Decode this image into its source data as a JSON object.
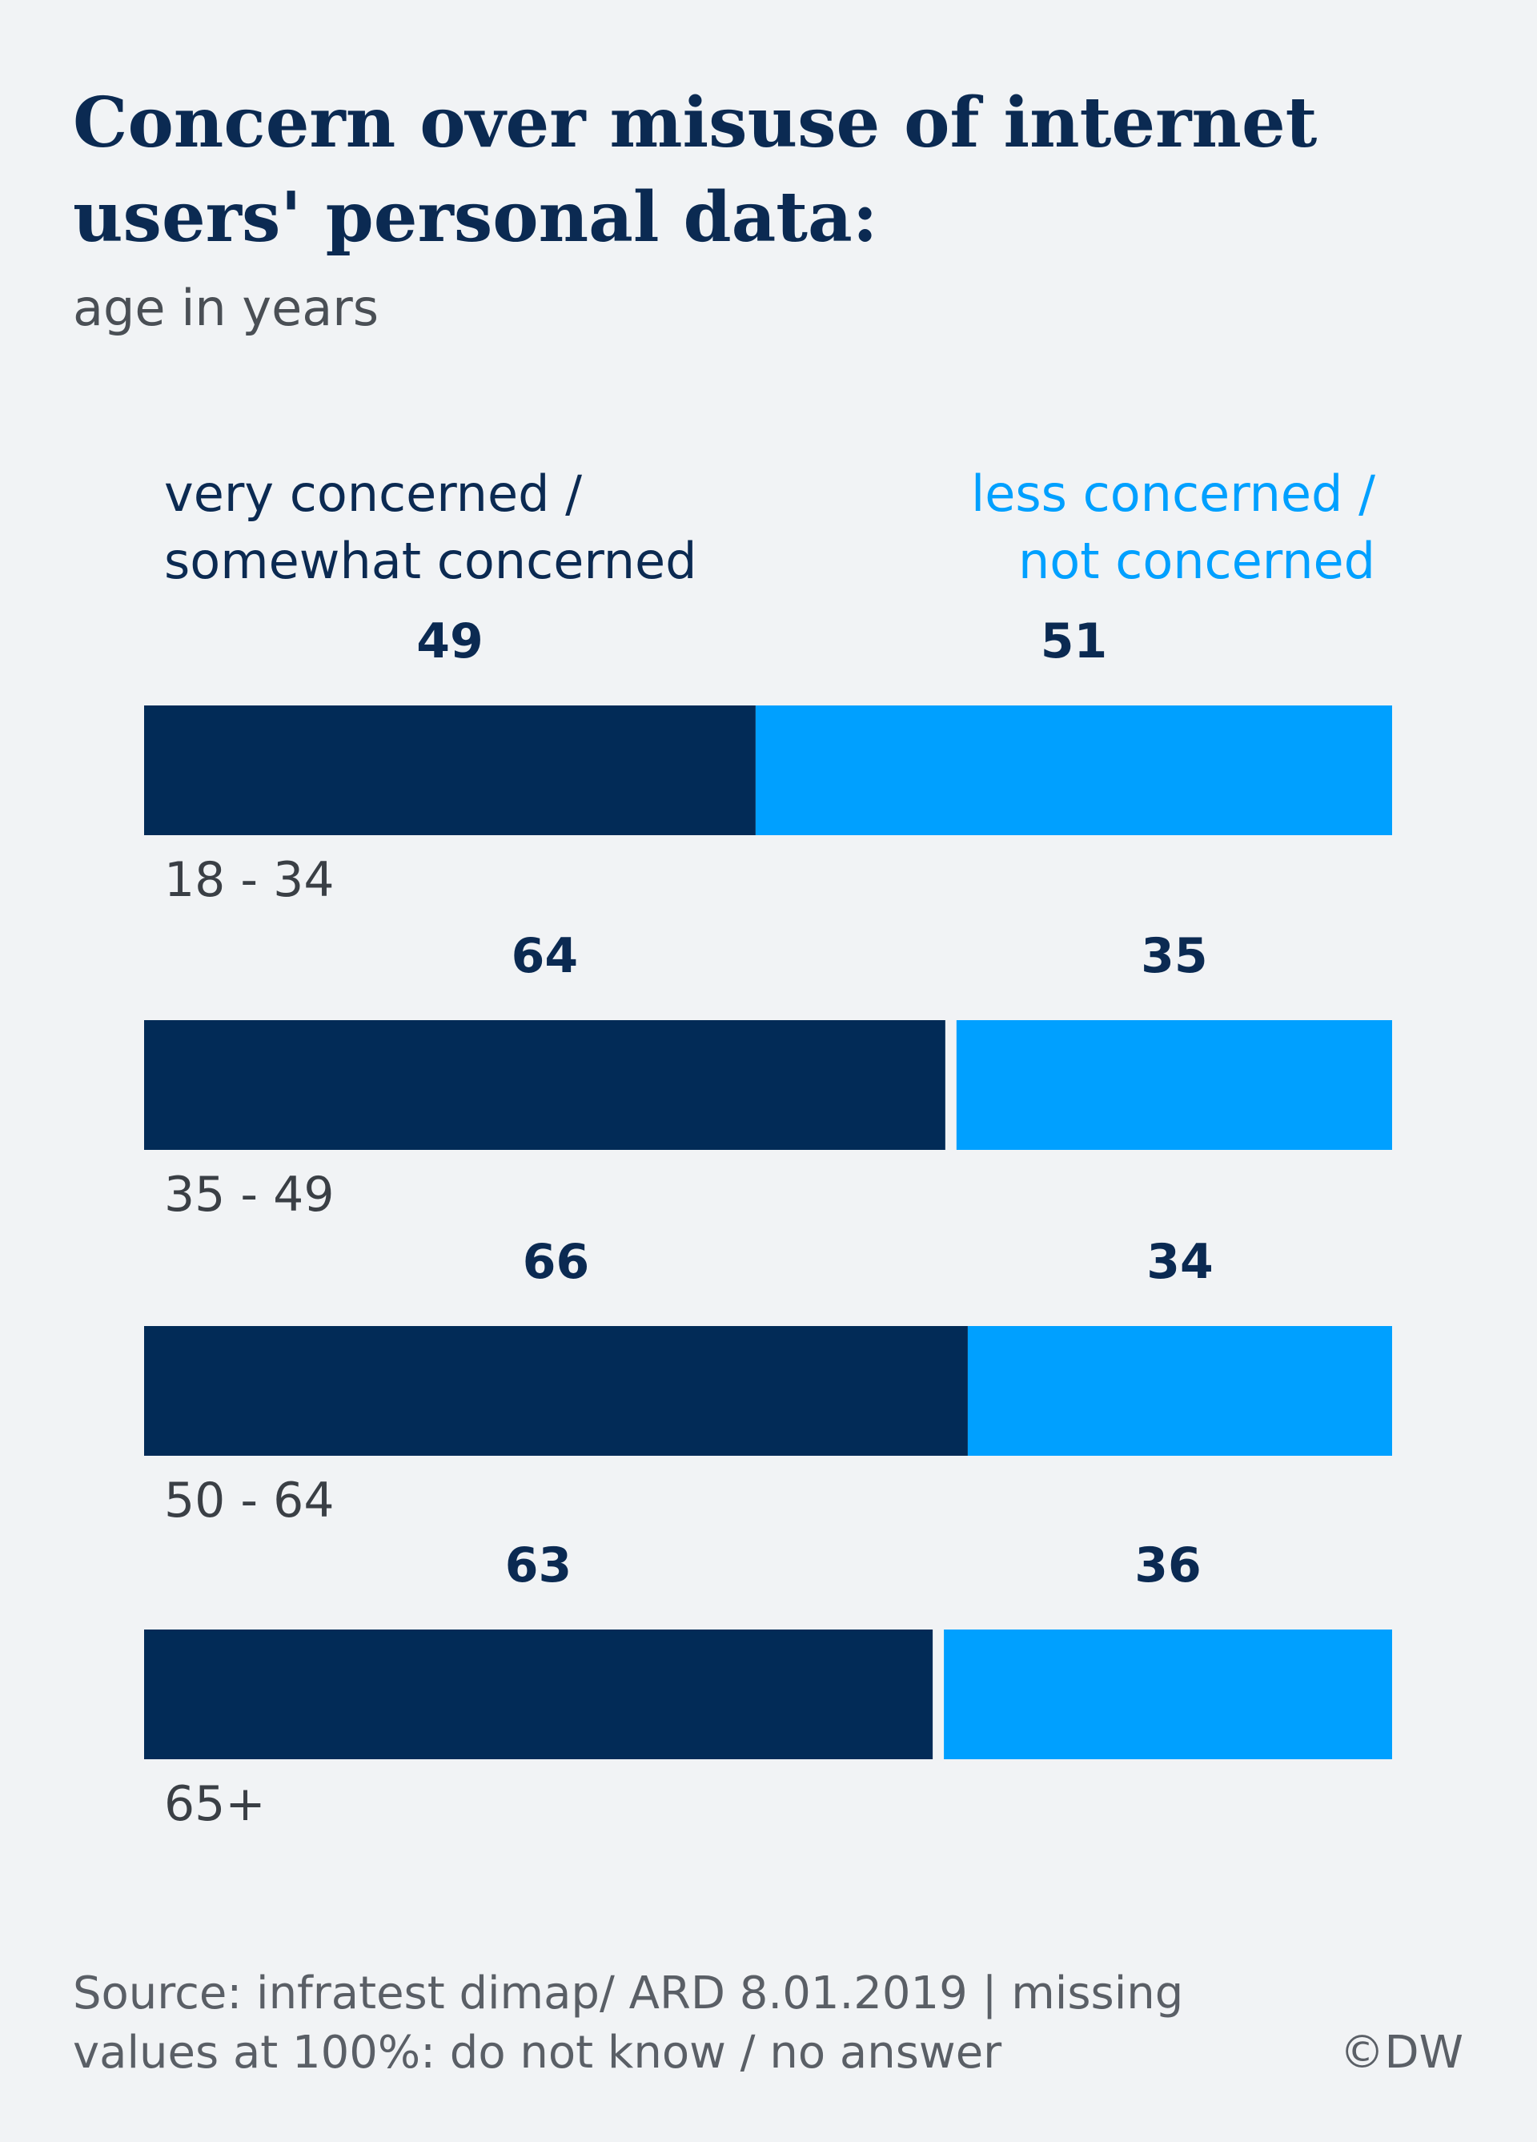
{
  "chart_data": {
    "type": "bar",
    "orientation": "horizontal-stacked",
    "title": "Concern over misuse of internet users' personal data:",
    "subtitle": "age in years",
    "categories": [
      "18 - 34",
      "35 - 49",
      "50 - 64",
      "65+"
    ],
    "series": [
      {
        "name": "very concerned / somewhat concerned",
        "name_lines": [
          "very concerned /",
          "somewhat concerned"
        ],
        "color": "#022b57",
        "values": [
          49,
          64,
          66,
          63
        ]
      },
      {
        "name": "less concerned / not concerned",
        "name_lines": [
          "less concerned /",
          "not concerned"
        ],
        "color": "#00a0ff",
        "values": [
          51,
          35,
          34,
          36
        ]
      }
    ],
    "xlim": [
      0,
      100
    ],
    "grid": false,
    "legend_position": "top",
    "source": "Source: infratest dimap/ ARD 8.01.2019 | missing values at 100%: do not know / no answer",
    "copyright": "©DW"
  }
}
